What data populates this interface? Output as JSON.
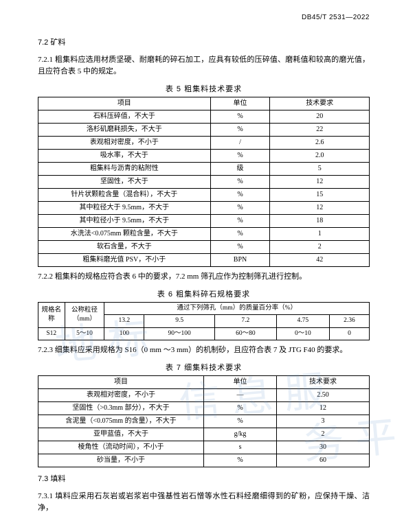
{
  "header": {
    "docId": "DB45/T 2531—2022"
  },
  "s72": {
    "heading": "7.2  矿料",
    "p721": "7.2.1  粗集料应选用材质坚硬、耐磨耗的碎石加工，应具有较低的压碎值、磨耗值和较高的磨光值，且应符合表 5 中的规定。",
    "tbl5caption": "表 5   粗集料技术要求",
    "tbl5cols": {
      "item": "项目",
      "unit": "单位",
      "req": "技术要求"
    },
    "tbl5rows": [
      {
        "item": "石料压碎值，不大于",
        "unit": "%",
        "req": "20"
      },
      {
        "item": "洛杉矶磨耗损失，不大于",
        "unit": "%",
        "req": "22"
      },
      {
        "item": "表观相对密度，不小于",
        "unit": "/",
        "req": "2.6"
      },
      {
        "item": "吸水率，不大于",
        "unit": "%",
        "req": "2.0"
      },
      {
        "item": "粗集料与沥青的粘附性",
        "unit": "级",
        "req": "5"
      },
      {
        "item": "坚固性，不大于",
        "unit": "%",
        "req": "12"
      },
      {
        "item": "针片状颗粒含量（混合料），不大于",
        "unit": "%",
        "req": "15"
      },
      {
        "item": "其中粒径大于 9.5mm，不大于",
        "unit": "%",
        "req": "12"
      },
      {
        "item": "其中粒径小于 9.5mm，不大于",
        "unit": "%",
        "req": "18"
      },
      {
        "item": "水洗法<0.075mm 颗粒含量，不大于",
        "unit": "%",
        "req": "1"
      },
      {
        "item": "软石含量，不大于",
        "unit": "%",
        "req": "2"
      },
      {
        "item": "粗集料磨光值 PSV，不小于",
        "unit": "BPN",
        "req": "42"
      }
    ],
    "p722": "7.2.2  粗集料的规格应符合表 6 中的要求，7.2 mm 筛孔应作为控制筛孔进行控制。",
    "tbl6caption": "表 6   粗集料碎石规格要求",
    "tbl6": {
      "h_spec": "规格名称",
      "h_size": "公称粒径（mm）",
      "h_pass": "通过下列筛孔（mm）的质量百分率（%）",
      "sieves": [
        "13.2",
        "9.5",
        "7.2",
        "4.75",
        "2.36"
      ],
      "row": {
        "name": "S12",
        "size": "5～10",
        "vals": [
          "100",
          "90～100",
          "60～80",
          "0～10",
          "0"
        ]
      }
    },
    "p723": "7.2.3  细集料应采用规格为 S16（0 mm ～3 mm）的机制砂，且应符合表 7 及 JTG F40 的要求。",
    "tbl7caption": "表 7   细集料技术要求",
    "tbl7cols": {
      "item": "项目",
      "unit": "单位",
      "req": "技术要求"
    },
    "tbl7rows": [
      {
        "item": "表观相对密度，不小于",
        "unit": "—",
        "req": "2.50"
      },
      {
        "item": "坚固性（>0.3mm 部分），不大于",
        "unit": "%",
        "req": "12"
      },
      {
        "item": "含泥量（<0.075mm 的含量），不大于",
        "unit": "%",
        "req": "3"
      },
      {
        "item": "亚甲蓝值，不大于",
        "unit": "g/kg",
        "req": "2"
      },
      {
        "item": "棱角性（流动时间），不小于",
        "unit": "s",
        "req": "30"
      },
      {
        "item": "砂当量，不小于",
        "unit": "%",
        "req": "60"
      }
    ]
  },
  "s73": {
    "heading": "7.3  填料",
    "p731": "7.3.1  填料应采用石灰岩或岩浆岩中强基性岩石憎等水性石料经磨细得到的矿粉，应保持干燥、洁净，"
  }
}
